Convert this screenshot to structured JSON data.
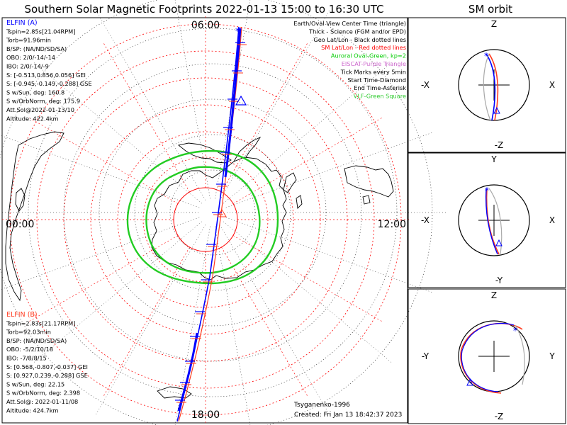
{
  "title": "Southern Solar Magnetic Footprints 2022-01-13 15:00 to 16:30 UTC",
  "sm_orbit_title": "SM orbit",
  "map": {
    "mlt_labels": {
      "top": "06:00",
      "left": "00:00",
      "right": "12:00",
      "bottom": "18:00"
    }
  },
  "elfin_a": {
    "name": "ELFIN (A)",
    "color": "#0000ff",
    "lines": [
      "Tspin=2.85s[21.04RPM]",
      "Torb=91.96min",
      "B/SP: (NA/ND/SD/SA)",
      "OBO: 2/0/-14/-14",
      "IBO: 2/0/-14/-9",
      "S: [-0.513,0.856,0.056] GEI",
      "S: [-0.945,-0.149,-0.288] GSE",
      "S w/Sun, deg: 160.8",
      "S w/OrbNorm, deg: 175.9",
      "Att.Sol@2022-01-13/10",
      "Altitude: 422.4km"
    ]
  },
  "elfin_b": {
    "name": "ELFIN (B)",
    "color": "#ff3b1f",
    "lines": [
      "Tspin=2.83s[21.17RPM]",
      "Torb=92.03min",
      "B/SP: (NA/ND/SD/SA)",
      "OBO: -5/2/10/18",
      "IBO: -7/8/8/15",
      "S: [0.568,-0.807,-0.037] GEI",
      "S: [0.927,0.239,-0.288] GSE",
      "S w/Sun, deg: 22.15",
      "S w/OrbNorm, deg: 2.398",
      "Att.Sol@: 2022-01-11/08",
      "Altitude: 424.7km"
    ]
  },
  "legend": [
    {
      "text": "Earth/Oval View Center Time (triangle)",
      "color": "#000000"
    },
    {
      "text": "Thick - Science (FGM and/or EPD)",
      "color": "#000000"
    },
    {
      "text": "Geo Lat/Lon - Black dotted lines",
      "color": "#000000"
    },
    {
      "text": "SM Lat/Lon - Red dotted lines",
      "color": "#ff0000"
    },
    {
      "text": "Auroral Oval-Green, kp=2",
      "color": "#00cc00"
    },
    {
      "text": "EISCAT-Purple Triangle",
      "color": "#cc66cc"
    },
    {
      "text": "Tick Marks every 5min",
      "color": "#000000"
    },
    {
      "text": "Start Time-Diamond",
      "color": "#000000"
    },
    {
      "text": "End Time-Asterisk",
      "color": "#000000"
    },
    {
      "text": "VLF-Green Square",
      "color": "#33cc33"
    }
  ],
  "credit": "Tsyganenko-1996",
  "created": "Created: Fri Jan 13 18:42:37 2023",
  "panels": [
    {
      "top": "Z",
      "bottom": "-Z",
      "left": "-X",
      "right": "X"
    },
    {
      "top": "Y",
      "bottom": "-Y",
      "left": "-X",
      "right": "X"
    },
    {
      "top": "Z",
      "bottom": "-Z",
      "left": "-Y",
      "right": "Y"
    }
  ],
  "colors": {
    "blue": "#0000ff",
    "red": "#ff3b1f",
    "grid_red": "#ff0000",
    "oval": "#22cc22",
    "gray": "#aaaaaa"
  }
}
